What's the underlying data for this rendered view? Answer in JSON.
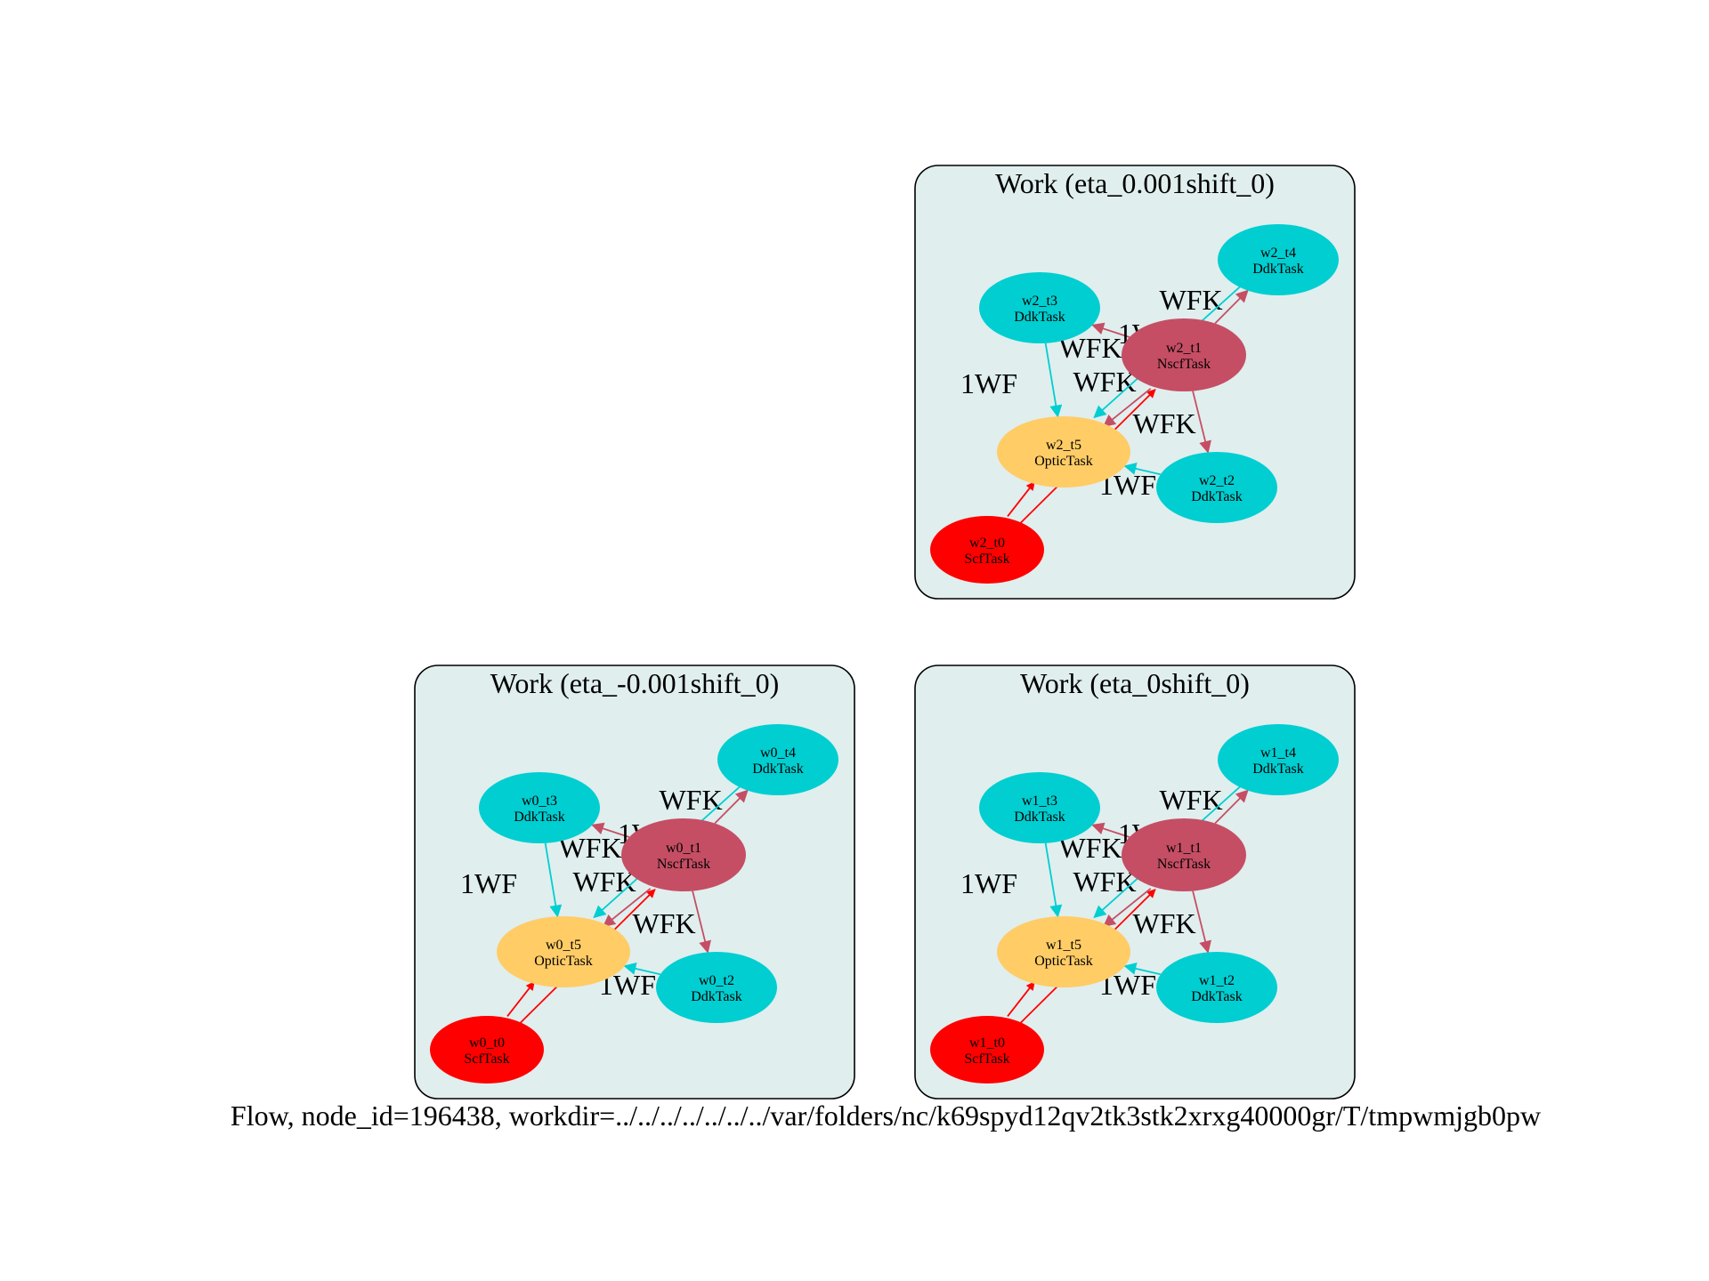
{
  "caption": "Flow, node_id=196438, workdir=../../../../../../../var/folders/nc/k69spyd12qv2tk3stk2xrxg40000gr/T/tmpwmjgb0pw",
  "colors": {
    "scf": "#ff0000",
    "nscf": "#c54e64",
    "ddk": "#00ced1",
    "optic": "#ffcc66",
    "cluster_fill": "#e0eeee"
  },
  "clusters": [
    {
      "id": "w2",
      "title": "Work (eta_0.001shift_0)",
      "nodes": [
        {
          "id": "w2_t0",
          "type": "ScfTask"
        },
        {
          "id": "w2_t1",
          "type": "NscfTask"
        },
        {
          "id": "w2_t2",
          "type": "DdkTask"
        },
        {
          "id": "w2_t3",
          "type": "DdkTask"
        },
        {
          "id": "w2_t4",
          "type": "DdkTask"
        },
        {
          "id": "w2_t5",
          "type": "OpticTask"
        }
      ],
      "edges": [
        {
          "from": "w2_t0",
          "to": "w2_t1",
          "label": ""
        },
        {
          "from": "w2_t0",
          "to": "w2_t5",
          "label": ""
        },
        {
          "from": "w2_t1",
          "to": "w2_t2",
          "label": "WFK"
        },
        {
          "from": "w2_t1",
          "to": "w2_t3",
          "label": "WFK"
        },
        {
          "from": "w2_t1",
          "to": "w2_t4",
          "label": "WFK"
        },
        {
          "from": "w2_t1",
          "to": "w2_t5",
          "label": "WFK"
        },
        {
          "from": "w2_t2",
          "to": "w2_t5",
          "label": "1WF"
        },
        {
          "from": "w2_t3",
          "to": "w2_t5",
          "label": "1WF"
        },
        {
          "from": "w2_t4",
          "to": "w2_t5",
          "label": "1WF"
        }
      ]
    },
    {
      "id": "w0",
      "title": "Work (eta_-0.001shift_0)",
      "nodes": [
        {
          "id": "w0_t0",
          "type": "ScfTask"
        },
        {
          "id": "w0_t1",
          "type": "NscfTask"
        },
        {
          "id": "w0_t2",
          "type": "DdkTask"
        },
        {
          "id": "w0_t3",
          "type": "DdkTask"
        },
        {
          "id": "w0_t4",
          "type": "DdkTask"
        },
        {
          "id": "w0_t5",
          "type": "OpticTask"
        }
      ],
      "edges": [
        {
          "from": "w0_t0",
          "to": "w0_t1",
          "label": ""
        },
        {
          "from": "w0_t0",
          "to": "w0_t5",
          "label": ""
        },
        {
          "from": "w0_t1",
          "to": "w0_t2",
          "label": "WFK"
        },
        {
          "from": "w0_t1",
          "to": "w0_t3",
          "label": "WFK"
        },
        {
          "from": "w0_t1",
          "to": "w0_t4",
          "label": "WFK"
        },
        {
          "from": "w0_t1",
          "to": "w0_t5",
          "label": "WFK"
        },
        {
          "from": "w0_t2",
          "to": "w0_t5",
          "label": "1WF"
        },
        {
          "from": "w0_t3",
          "to": "w0_t5",
          "label": "1WF"
        },
        {
          "from": "w0_t4",
          "to": "w0_t5",
          "label": "1WF"
        }
      ]
    },
    {
      "id": "w1",
      "title": "Work (eta_0shift_0)",
      "nodes": [
        {
          "id": "w1_t0",
          "type": "ScfTask"
        },
        {
          "id": "w1_t1",
          "type": "NscfTask"
        },
        {
          "id": "w1_t2",
          "type": "DdkTask"
        },
        {
          "id": "w1_t3",
          "type": "DdkTask"
        },
        {
          "id": "w1_t4",
          "type": "DdkTask"
        },
        {
          "id": "w1_t5",
          "type": "OpticTask"
        }
      ],
      "edges": [
        {
          "from": "w1_t0",
          "to": "w1_t1",
          "label": ""
        },
        {
          "from": "w1_t0",
          "to": "w1_t5",
          "label": ""
        },
        {
          "from": "w1_t1",
          "to": "w1_t2",
          "label": "WFK"
        },
        {
          "from": "w1_t1",
          "to": "w1_t3",
          "label": "WFK"
        },
        {
          "from": "w1_t1",
          "to": "w1_t4",
          "label": "WFK"
        },
        {
          "from": "w1_t1",
          "to": "w1_t5",
          "label": "WFK"
        },
        {
          "from": "w1_t2",
          "to": "w1_t5",
          "label": "1WF"
        },
        {
          "from": "w1_t3",
          "to": "w1_t5",
          "label": "1WF"
        },
        {
          "from": "w1_t4",
          "to": "w1_t5",
          "label": "1WF"
        }
      ]
    }
  ]
}
